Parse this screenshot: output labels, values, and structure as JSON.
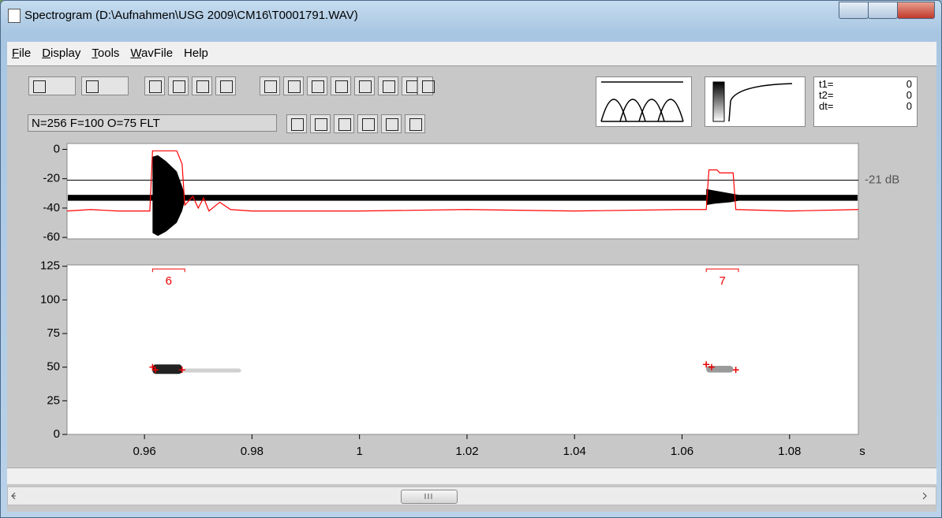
{
  "window": {
    "title": "Spectrogram (D:\\Aufnahmen\\USG 2009\\CM16\\T0001791.WAV)"
  },
  "menu": [
    "File",
    "Display",
    "Tools",
    "WavFile",
    "Help"
  ],
  "status": "N=256 F=100 O=75 FLT",
  "cursors": [
    {
      "label": "t1=",
      "value": 0
    },
    {
      "label": "t2=",
      "value": 0
    },
    {
      "label": "dt=",
      "value": 0
    }
  ],
  "waveform": {
    "ylim": [
      4,
      -61
    ],
    "yticks": [
      0,
      -20,
      -40,
      -60
    ],
    "threshold": {
      "value": -21,
      "label": "-21 dB"
    },
    "noise_band": [
      -31,
      -35
    ],
    "bursts": [
      {
        "x": [
          0.9615,
          0.9625,
          0.964,
          0.966,
          0.967,
          0.9675
        ],
        "top": [
          -5,
          -4,
          -8,
          -15,
          -25,
          -31
        ],
        "bottom": [
          -57,
          -59,
          -56,
          -50,
          -42,
          -35
        ]
      },
      {
        "x": [
          1.0645,
          1.066,
          1.069,
          1.0705
        ],
        "top": [
          -27,
          -28,
          -30,
          -31
        ],
        "bottom": [
          -38,
          -37,
          -36,
          -35
        ]
      }
    ],
    "energy": {
      "color": "#ff0000",
      "x": [
        0.9456,
        0.95,
        0.955,
        0.961,
        0.9615,
        0.966,
        0.967,
        0.9675,
        0.969,
        0.97,
        0.971,
        0.972,
        0.974,
        0.976,
        0.98,
        1.0,
        1.02,
        1.04,
        1.06,
        1.0645,
        1.065,
        1.0665,
        1.067,
        1.0695,
        1.07,
        1.08,
        1.0928
      ],
      "values": [
        -42,
        -41,
        -42,
        -42,
        -1,
        -1,
        -10,
        -38,
        -32,
        -40,
        -33,
        -42,
        -36,
        -41,
        -42,
        -42,
        -41,
        -42,
        -41,
        -41,
        -14,
        -14,
        -16,
        -16,
        -41,
        -42,
        -41
      ]
    }
  },
  "spectrogram": {
    "ylim": [
      0,
      126
    ],
    "yticks": [
      0,
      25,
      50,
      75,
      100,
      125
    ],
    "xlim": [
      0.9456,
      1.0928
    ],
    "xticks": [
      0.96,
      0.98,
      1,
      1.02,
      1.04,
      1.06,
      1.08
    ],
    "x_unit": "s",
    "blobs": [
      {
        "x": [
          0.9615,
          0.967
        ],
        "y": [
          45,
          52
        ],
        "color": "#222222"
      },
      {
        "x": [
          0.967,
          0.978
        ],
        "y": [
          46,
          49
        ],
        "color": "#d0d0d0"
      },
      {
        "x": [
          1.0645,
          1.0695
        ],
        "y": [
          46,
          51
        ],
        "color": "#9a9a9a"
      }
    ],
    "detections": [
      {
        "label": "6",
        "x": [
          0.9615,
          0.9675
        ],
        "y": 123
      },
      {
        "label": "7",
        "x": [
          1.0645,
          1.0705
        ],
        "y": 123
      }
    ],
    "crosses": {
      "x": [
        0.9615,
        0.962,
        0.967,
        1.0645,
        1.0655,
        1.07
      ],
      "y": [
        50,
        48,
        48,
        52,
        50,
        48
      ]
    }
  }
}
